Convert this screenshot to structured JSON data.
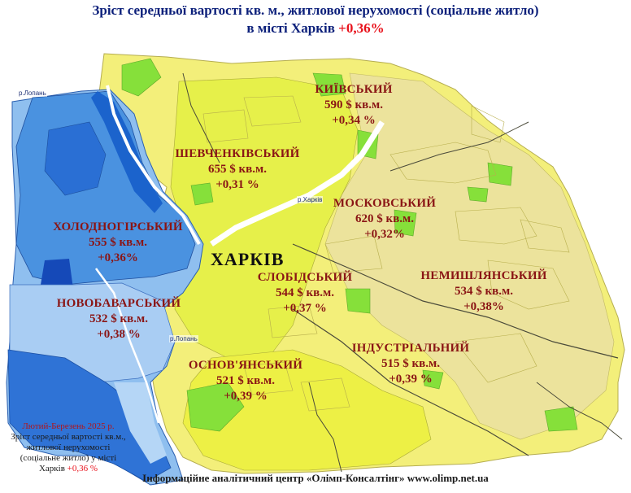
{
  "title": {
    "line1": "Зріст середньої вартості кв. м., житлової нерухомості (соціальне житло)",
    "line2_prefix": "в місті Харків",
    "line2_accent": "+0,36%"
  },
  "city_label": "ХАРКІВ",
  "rivers": {
    "lopan_top": "р.Лопань",
    "kharkiv": "р.Харків",
    "lopan_bottom": "р.Лопань"
  },
  "districts": [
    {
      "id": "kyivskyi",
      "name": "КИЇВСЬКИЙ",
      "price": "590 $ кв.м.",
      "change": "+0,34 %"
    },
    {
      "id": "shevchenkivskyi",
      "name": "ШЕВЧЕНКІВСЬКИЙ",
      "price": "655 $ кв.м.",
      "change": "+0,31 %"
    },
    {
      "id": "moskovskyi",
      "name": "МОСКОВСЬКИЙ",
      "price": "620 $ кв.м.",
      "change": "+0,32%"
    },
    {
      "id": "kholodnohirskyi",
      "name": "ХОЛОДНОГІРСЬКИЙ",
      "price": "555 $ кв.м.",
      "change": "+0,36%"
    },
    {
      "id": "slobidskyi",
      "name": "СЛОБІДСЬКИЙ",
      "price": "544 $ кв.м.",
      "change": "+0,37 %"
    },
    {
      "id": "nemyshlianskyi",
      "name": "НЕМИШЛЯНСЬКИЙ",
      "price": "534 $ кв.м.",
      "change": "+0,38%"
    },
    {
      "id": "novobavarskyi",
      "name": "НОВОБАВАРСЬКИЙ",
      "price": "532 $ кв.м.",
      "change": "+0,38 %"
    },
    {
      "id": "industrialnyi",
      "name": "ІНДУСТРІАЛЬНИЙ",
      "price": "515 $ кв.м.",
      "change": "+0,39 %"
    },
    {
      "id": "osnovianskyi",
      "name": "ОСНОВ'ЯНСЬКИЙ",
      "price": "521 $ кв.м.",
      "change": "+0,39 %"
    }
  ],
  "note": {
    "date": "Лютий-Березень 2025 р.",
    "text": "Зріст середньої вартості кв.м., житлової нерухомості (соціальне житло) у місті Харків",
    "accent": "+0,36 %"
  },
  "footer": "Інформаційне аналітичний центр «Олімп-Консалтінг» www.olimp.net.ua",
  "colors": {
    "west_blue": "#2f73d6",
    "west_light_blue": "#8fbfef",
    "west_mid_blue": "#4a92e0",
    "east_yellow": "#f5f27a",
    "east_pale": "#e9e39a",
    "park_green": "#86e03a",
    "label_red": "#8a1515",
    "title_blue": "#0b1f7a",
    "accent_red": "#e8101a"
  }
}
